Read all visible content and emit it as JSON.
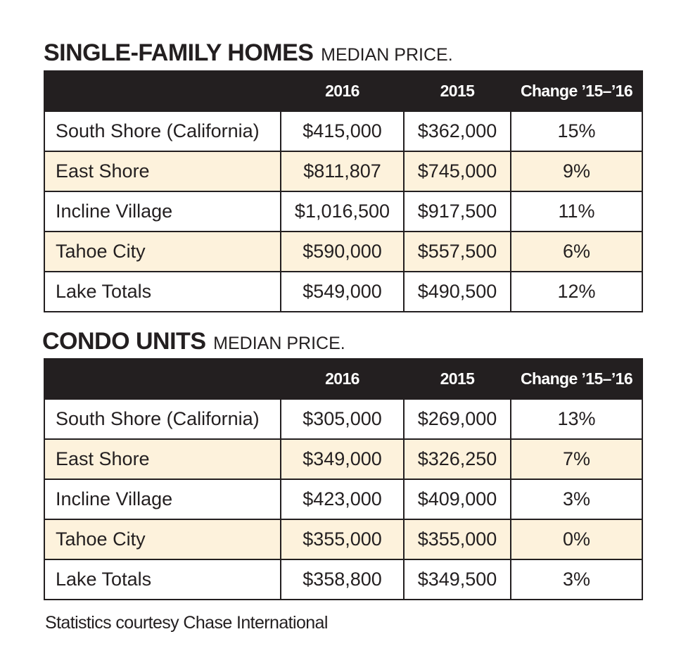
{
  "tables": [
    {
      "title": "SINGLE-FAMILY HOMES",
      "subtitle": "MEDIAN PRICE.",
      "headers": [
        "",
        "2016",
        "2015",
        "Change ’15–’16"
      ],
      "rows": [
        {
          "area": "South Shore (California)",
          "y2016": "$415,000",
          "y2015": "$362,000",
          "change": "15%"
        },
        {
          "area": "East Shore",
          "y2016": "$811,807",
          "y2015": "$745,000",
          "change": "9%"
        },
        {
          "area": "Incline Village",
          "y2016": "$1,016,500",
          "y2015": "$917,500",
          "change": "11%"
        },
        {
          "area": "Tahoe City",
          "y2016": "$590,000",
          "y2015": "$557,500",
          "change": "6%"
        },
        {
          "area": "Lake Totals",
          "y2016": "$549,000",
          "y2015": "$490,500",
          "change": "12%"
        }
      ]
    },
    {
      "title": "CONDO UNITS",
      "subtitle": "MEDIAN PRICE.",
      "headers": [
        "",
        "2016",
        "2015",
        "Change ’15–’16"
      ],
      "rows": [
        {
          "area": "South Shore (California)",
          "y2016": "$305,000",
          "y2015": "$269,000",
          "change": "13%"
        },
        {
          "area": "East Shore",
          "y2016": "$349,000",
          "y2015": "$326,250",
          "change": "7%"
        },
        {
          "area": "Incline Village",
          "y2016": "$423,000",
          "y2015": "$409,000",
          "change": "3%"
        },
        {
          "area": "Tahoe City",
          "y2016": "$355,000",
          "y2015": "$355,000",
          "change": "0%"
        },
        {
          "area": "Lake Totals",
          "y2016": "$358,800",
          "y2015": "$349,500",
          "change": "3%"
        }
      ]
    }
  ],
  "footnote": "Statistics courtesy Chase International",
  "colors": {
    "header_bg": "#231f20",
    "header_text": "#ffffff",
    "shaded_row": "#fdf2dc",
    "text": "#231f20"
  }
}
